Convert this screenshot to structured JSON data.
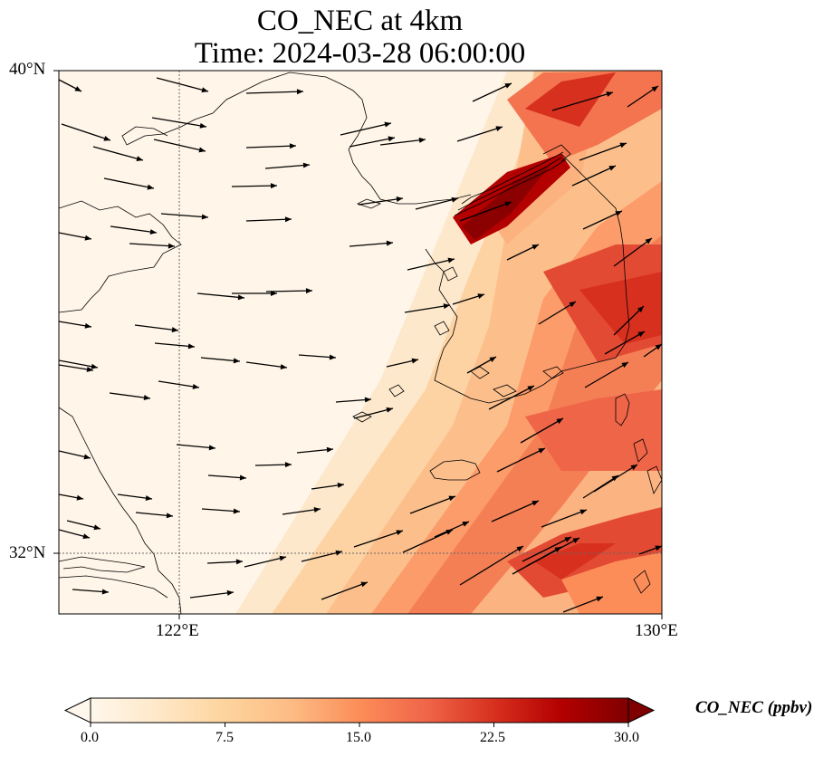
{
  "title": "CO_NEC at 4km",
  "subtitle": "Time: 2024-03-28 06:00:00",
  "map": {
    "lat_labels": [
      "40°N",
      "32°N"
    ],
    "lon_labels": [
      "122°E",
      "130°E"
    ],
    "lon_range": [
      120,
      130
    ],
    "lat_range": [
      31,
      40
    ]
  },
  "colorbar": {
    "label": "CO_NEC (ppbv)",
    "ticks": [
      "0.0",
      "7.5",
      "15.0",
      "22.5",
      "30.0"
    ],
    "range": [
      0,
      30
    ],
    "colormap": "OrRd",
    "colors": [
      "#fff7ec",
      "#fee8c8",
      "#fdd49e",
      "#fdbb84",
      "#fc8d59",
      "#ef6548",
      "#d7301f",
      "#b30000",
      "#7f0000"
    ]
  }
}
